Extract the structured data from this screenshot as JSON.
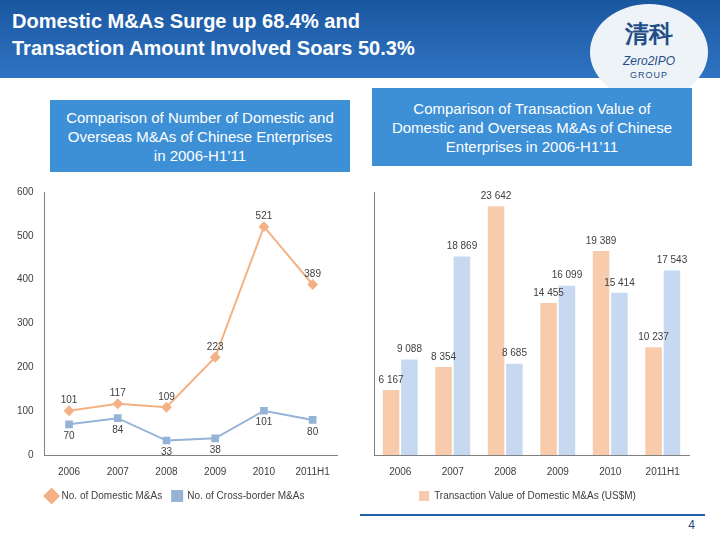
{
  "header": {
    "title": [
      "Domestic M&As Surge up 68.4% and",
      "Transaction Amount Involved Soars 50.3%"
    ],
    "logo": {
      "cn": "清科",
      "en": "Zero2IPO",
      "group": "GROUP"
    }
  },
  "footer": {
    "page": "4"
  },
  "chart_data": [
    {
      "type": "line",
      "title": "Comparison of Number of Domestic and Overseas M&As of Chinese Enterprises in 2006-H1’11",
      "categories": [
        "2006",
        "2007",
        "2008",
        "2009",
        "2010",
        "2011H1"
      ],
      "series": [
        {
          "name": "No. of Domestic M&As",
          "color": "#f4b183",
          "marker": "diamond",
          "values": [
            101,
            117,
            109,
            223,
            521,
            389
          ]
        },
        {
          "name": "No. of Cross-border M&As",
          "color": "#95b3d7",
          "marker": "square",
          "values": [
            70,
            84,
            33,
            38,
            101,
            80
          ]
        }
      ],
      "ylim": [
        0,
        600
      ],
      "yticks": [
        0,
        100,
        200,
        300,
        400,
        500,
        600
      ],
      "grid": false,
      "legend": "bottom",
      "data_labels": true
    },
    {
      "type": "bar",
      "title": "Comparison of Transaction Value of Domestic and Overseas M&As of Chinese Enterprises in 2006-H1’11",
      "categories": [
        "2006",
        "2007",
        "2008",
        "2009",
        "2010",
        "2011H1"
      ],
      "series": [
        {
          "name": "Transaction Value of Domestic M&As (US$M)",
          "color": "#f8cbad",
          "values": [
            6167,
            8354,
            23642,
            14455,
            19389,
            10237
          ],
          "value_labels": [
            "6 167",
            "8 354",
            "23 642",
            "14 455",
            "19 389",
            "10 237"
          ]
        },
        {
          "color": "#c6d9f1",
          "values": [
            9088,
            18869,
            8685,
            16099,
            15414,
            17543
          ],
          "value_labels": [
            "9 088",
            "18 869",
            "8 685",
            "16 099",
            "15 414",
            "17 543"
          ]
        }
      ],
      "ylim": [
        0,
        25000
      ],
      "grid": false,
      "legend": "bottom",
      "data_labels": true,
      "tick_labels": "x"
    }
  ]
}
